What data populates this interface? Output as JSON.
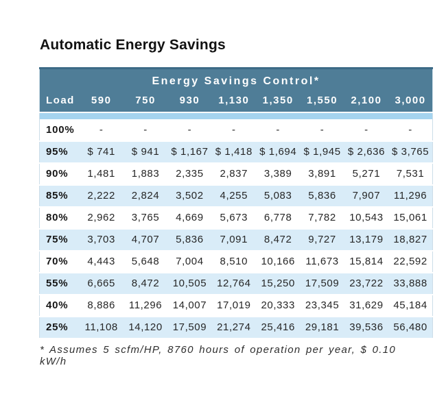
{
  "page": {
    "title": "Automatic Energy Savings",
    "footnote": "* Assumes 5 scfm/HP, 8760 hours of operation per year, $ 0.10 kW/h"
  },
  "colors": {
    "header_bg": "#4f7d97",
    "header_top_edge": "#3c6a86",
    "strip_blue": "#a5d4ef",
    "zebra_row_blue": "#d9ecf8",
    "table_border": "#ccdde8",
    "header_text": "#ffffff",
    "body_text": "#262626"
  },
  "chart_data": {
    "type": "table",
    "title": "Automatic Energy Savings",
    "group_header": "Energy Savings Control*",
    "columns": [
      "Load",
      "590",
      "750",
      "930",
      "1,130",
      "1,350",
      "1,550",
      "2,100",
      "3,000"
    ],
    "rows": [
      [
        "100%",
        "-",
        "-",
        "-",
        "-",
        "-",
        "-",
        "-",
        "-"
      ],
      [
        "95%",
        "$ 741",
        "$ 941",
        "$ 1,167",
        "$ 1,418",
        "$ 1,694",
        "$ 1,945",
        "$ 2,636",
        "$ 3,765"
      ],
      [
        "90%",
        "1,481",
        "1,883",
        "2,335",
        "2,837",
        "3,389",
        "3,891",
        "5,271",
        "7,531"
      ],
      [
        "85%",
        "2,222",
        "2,824",
        "3,502",
        "4,255",
        "5,083",
        "5,836",
        "7,907",
        "11,296"
      ],
      [
        "80%",
        "2,962",
        "3,765",
        "4,669",
        "5,673",
        "6,778",
        "7,782",
        "10,543",
        "15,061"
      ],
      [
        "75%",
        "3,703",
        "4,707",
        "5,836",
        "7,091",
        "8,472",
        "9,727",
        "13,179",
        "18,827"
      ],
      [
        "70%",
        "4,443",
        "5,648",
        "7,004",
        "8,510",
        "10,166",
        "11,673",
        "15,814",
        "22,592"
      ],
      [
        "55%",
        "6,665",
        "8,472",
        "10,505",
        "12,764",
        "15,250",
        "17,509",
        "23,722",
        "33,888"
      ],
      [
        "40%",
        "8,886",
        "11,296",
        "14,007",
        "17,019",
        "20,333",
        "23,345",
        "31,629",
        "45,184"
      ],
      [
        "25%",
        "11,108",
        "14,120",
        "17,509",
        "21,274",
        "25,416",
        "29,181",
        "39,536",
        "56,480"
      ]
    ],
    "footnote": "* Assumes 5 scfm/HP, 8760 hours of operation per year, $ 0.10 kW/h",
    "layout": {
      "zebra_striping": true,
      "load_column_alignment": "left",
      "value_alignment": "center"
    }
  }
}
